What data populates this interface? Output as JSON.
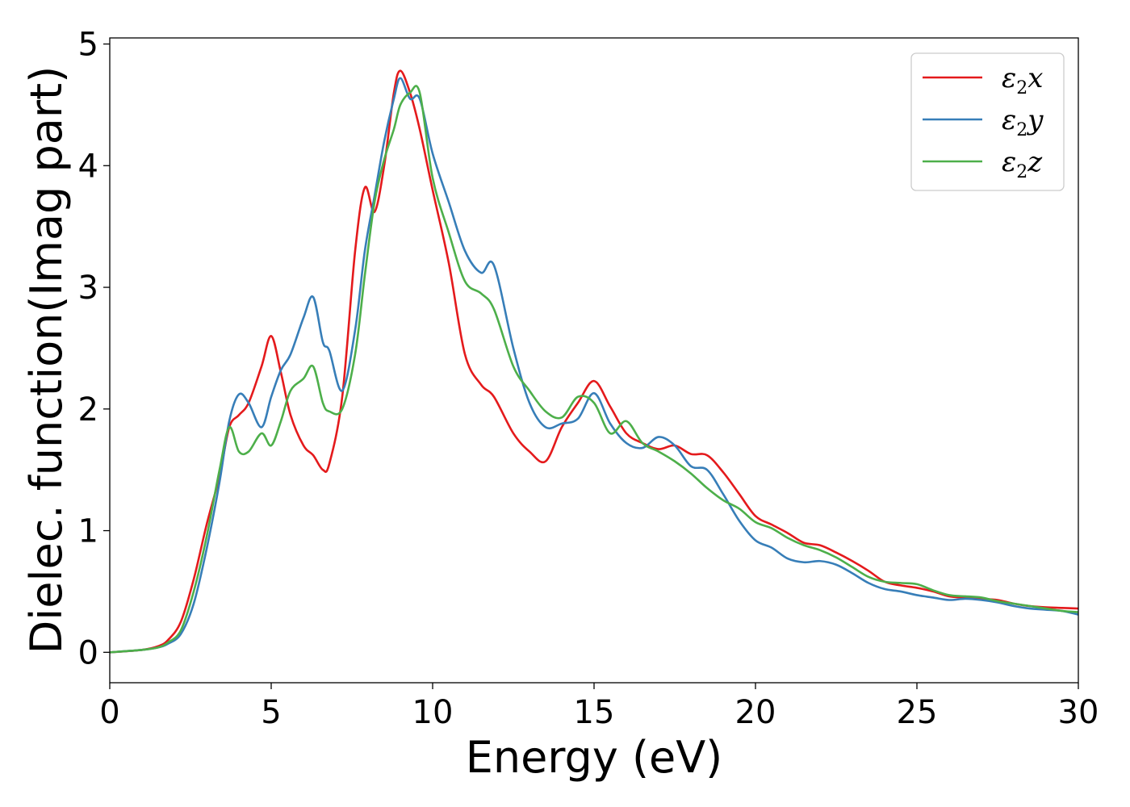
{
  "chart_data": {
    "type": "line",
    "title": "",
    "xlabel": "Energy (eV)",
    "ylabel": "Dielec. function(Imag part)",
    "xlim": [
      0,
      30
    ],
    "ylim": [
      -0.25,
      5.05
    ],
    "xticks": [
      0,
      5,
      10,
      15,
      20,
      25,
      30
    ],
    "yticks": [
      0,
      1,
      2,
      3,
      4,
      5
    ],
    "grid": false,
    "legend_position": "top-right",
    "series": [
      {
        "name": "ε2x",
        "legend": {
          "symbol": "ε",
          "sub": "2",
          "axis": "x"
        },
        "color": "#e41a1c",
        "x": [
          0,
          1,
          1.5,
          1.8,
          2.2,
          2.6,
          3,
          3.4,
          3.7,
          4,
          4.3,
          4.7,
          5,
          5.3,
          5.6,
          6,
          6.3,
          6.6,
          6.8,
          7.2,
          7.6,
          7.9,
          8.2,
          8.5,
          8.8,
          9,
          9.3,
          9.6,
          10,
          10.5,
          11,
          11.5,
          11.9,
          12.5,
          13,
          13.5,
          14,
          14.5,
          15,
          15.5,
          16,
          16.5,
          17,
          17.5,
          18,
          18.5,
          19,
          19.5,
          20,
          20.5,
          21,
          21.5,
          22,
          22.5,
          23,
          23.5,
          24,
          24.5,
          25,
          25.5,
          26,
          26.5,
          27,
          27.5,
          28,
          28.5,
          29,
          29.5,
          30
        ],
        "y": [
          0,
          0.02,
          0.05,
          0.1,
          0.25,
          0.6,
          1.05,
          1.45,
          1.85,
          1.95,
          2.05,
          2.35,
          2.6,
          2.3,
          1.95,
          1.7,
          1.62,
          1.5,
          1.55,
          2.1,
          3.3,
          3.82,
          3.62,
          4.0,
          4.6,
          4.78,
          4.6,
          4.3,
          3.8,
          3.2,
          2.45,
          2.2,
          2.1,
          1.8,
          1.65,
          1.57,
          1.85,
          2.05,
          2.23,
          2.02,
          1.8,
          1.72,
          1.67,
          1.7,
          1.63,
          1.62,
          1.48,
          1.3,
          1.12,
          1.05,
          0.98,
          0.9,
          0.88,
          0.82,
          0.75,
          0.67,
          0.58,
          0.55,
          0.53,
          0.5,
          0.46,
          0.45,
          0.44,
          0.43,
          0.4,
          0.38,
          0.37,
          0.365,
          0.36
        ]
      },
      {
        "name": "ε2y",
        "legend": {
          "symbol": "ε",
          "sub": "2",
          "axis": "y"
        },
        "color": "#377eb8",
        "x": [
          0,
          1,
          1.5,
          1.8,
          2.2,
          2.6,
          3,
          3.4,
          3.7,
          4,
          4.3,
          4.7,
          5,
          5.3,
          5.6,
          6,
          6.3,
          6.6,
          6.8,
          7.2,
          7.6,
          7.9,
          8.2,
          8.5,
          8.8,
          9,
          9.3,
          9.6,
          10,
          10.5,
          11,
          11.5,
          11.9,
          12.5,
          13,
          13.5,
          14,
          14.5,
          15,
          15.5,
          16,
          16.5,
          17,
          17.5,
          18,
          18.5,
          19,
          19.5,
          20,
          20.5,
          21,
          21.5,
          22,
          22.5,
          23,
          23.5,
          24,
          24.5,
          25,
          25.5,
          26,
          26.5,
          27,
          27.5,
          28,
          28.5,
          29,
          29.5,
          30
        ],
        "y": [
          0,
          0.02,
          0.04,
          0.07,
          0.15,
          0.4,
          0.85,
          1.4,
          1.9,
          2.12,
          2.05,
          1.85,
          2.1,
          2.32,
          2.45,
          2.75,
          2.92,
          2.55,
          2.48,
          2.15,
          2.65,
          3.3,
          3.75,
          4.2,
          4.55,
          4.72,
          4.55,
          4.55,
          4.1,
          3.7,
          3.3,
          3.12,
          3.18,
          2.5,
          2.05,
          1.85,
          1.88,
          1.92,
          2.13,
          1.88,
          1.72,
          1.68,
          1.77,
          1.7,
          1.53,
          1.5,
          1.3,
          1.08,
          0.92,
          0.86,
          0.77,
          0.74,
          0.75,
          0.72,
          0.65,
          0.57,
          0.52,
          0.5,
          0.47,
          0.45,
          0.43,
          0.44,
          0.43,
          0.41,
          0.38,
          0.36,
          0.35,
          0.34,
          0.31
        ]
      },
      {
        "name": "ε2z",
        "legend": {
          "symbol": "ε",
          "sub": "2",
          "axis": "z"
        },
        "color": "#4daf4a",
        "x": [
          0,
          1,
          1.5,
          1.8,
          2.2,
          2.6,
          3,
          3.4,
          3.7,
          4,
          4.3,
          4.7,
          5,
          5.3,
          5.6,
          6,
          6.3,
          6.6,
          6.8,
          7.2,
          7.6,
          7.9,
          8.2,
          8.5,
          8.8,
          9,
          9.3,
          9.6,
          10,
          10.5,
          11,
          11.5,
          11.9,
          12.5,
          13,
          13.5,
          14,
          14.5,
          15,
          15.5,
          16,
          16.5,
          17,
          17.5,
          18,
          18.5,
          19,
          19.5,
          20,
          20.5,
          21,
          21.5,
          22,
          22.5,
          23,
          23.5,
          24,
          24.5,
          25,
          25.5,
          26,
          26.5,
          27,
          27.5,
          28,
          28.5,
          29,
          29.5,
          30
        ],
        "y": [
          0,
          0.02,
          0.04,
          0.08,
          0.18,
          0.5,
          0.95,
          1.5,
          1.85,
          1.65,
          1.65,
          1.8,
          1.7,
          1.9,
          2.15,
          2.25,
          2.35,
          2.05,
          1.98,
          2.0,
          2.45,
          3.1,
          3.7,
          4.05,
          4.3,
          4.5,
          4.6,
          4.6,
          3.9,
          3.45,
          3.05,
          2.95,
          2.82,
          2.35,
          2.15,
          1.98,
          1.93,
          2.1,
          2.05,
          1.8,
          1.9,
          1.72,
          1.65,
          1.57,
          1.47,
          1.35,
          1.25,
          1.18,
          1.07,
          1.02,
          0.94,
          0.88,
          0.84,
          0.78,
          0.7,
          0.62,
          0.58,
          0.57,
          0.56,
          0.51,
          0.47,
          0.46,
          0.45,
          0.42,
          0.4,
          0.38,
          0.36,
          0.34,
          0.33
        ]
      }
    ]
  }
}
